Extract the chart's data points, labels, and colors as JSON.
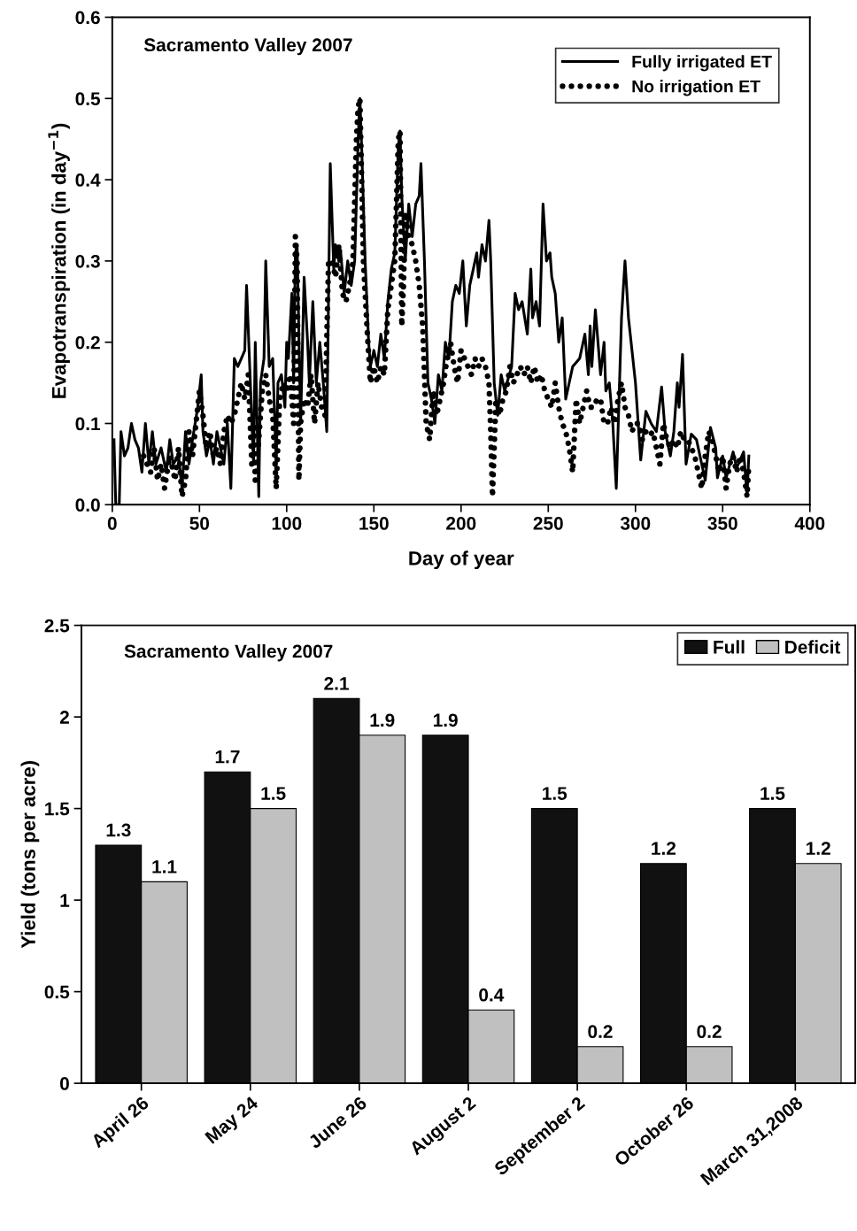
{
  "chart_data": [
    {
      "type": "line",
      "title": "Sacramento Valley 2007",
      "xlabel": "Day of year",
      "ylabel": "Evapotranspiration (in day$^{−1}$)",
      "xlim": [
        0,
        400
      ],
      "xticks": [
        0,
        50,
        100,
        150,
        200,
        250,
        300,
        350,
        400
      ],
      "ylim": [
        0,
        0.6
      ],
      "yticks": [
        {
          "value": 0,
          "label": "0.0"
        },
        {
          "value": 0.1,
          "label": "0.1"
        },
        {
          "value": 0.2,
          "label": "0.2"
        },
        {
          "value": 0.3,
          "label": "0.3"
        },
        {
          "value": 0.4,
          "label": "0.4"
        },
        {
          "value": 0.5,
          "label": "0.5"
        },
        {
          "value": 0.6,
          "label": "0.6"
        }
      ],
      "grid": false,
      "legend": "top right",
      "marker": "none",
      "series": [
        {
          "name": "Fully irrigated ET",
          "color": "#000000",
          "line_style": "solid",
          "x": [
            1,
            2,
            4,
            5,
            7,
            9,
            11,
            13,
            15,
            17,
            19,
            21,
            23,
            25,
            28,
            31,
            33,
            35,
            38,
            40,
            42,
            44,
            46,
            49,
            50,
            51,
            52,
            54,
            56,
            58,
            60,
            62,
            64,
            66,
            68,
            70,
            72,
            74,
            76,
            77,
            79,
            81,
            82,
            84,
            85,
            87,
            88,
            90,
            92,
            94,
            95,
            97,
            99,
            100,
            101,
            103,
            104,
            105,
            106,
            108,
            110,
            112,
            113,
            115,
            117,
            119,
            121,
            123,
            125,
            127,
            128,
            130,
            131,
            133,
            135,
            137,
            139,
            141,
            142,
            143,
            145,
            147,
            148,
            150,
            152,
            154,
            156,
            158,
            160,
            162,
            164,
            165,
            166,
            168,
            170,
            172,
            174,
            176,
            177,
            179,
            181,
            183,
            185,
            187,
            189,
            191,
            193,
            195,
            197,
            199,
            201,
            203,
            205,
            207,
            209,
            210,
            212,
            214,
            216,
            217,
            219,
            221,
            223,
            225,
            229,
            231,
            233,
            235,
            238,
            240,
            241,
            243,
            245,
            247,
            249,
            251,
            252,
            254,
            256,
            258,
            260,
            264,
            268,
            271,
            273,
            274,
            275,
            277,
            280,
            282,
            283,
            285,
            287,
            289,
            292,
            294,
            296,
            300,
            303,
            306,
            309,
            312,
            315,
            317,
            320,
            322,
            324,
            325,
            327,
            329,
            332,
            335,
            337,
            340,
            343,
            346,
            347,
            350,
            352,
            356,
            358,
            362,
            364,
            365
          ],
          "values": [
            0.08,
            0.0,
            0.0,
            0.09,
            0.06,
            0.07,
            0.1,
            0.08,
            0.07,
            0.04,
            0.1,
            0.05,
            0.09,
            0.05,
            0.07,
            0.04,
            0.08,
            0.05,
            0.06,
            0.02,
            0.09,
            0.05,
            0.08,
            0.12,
            0.14,
            0.16,
            0.09,
            0.06,
            0.08,
            0.05,
            0.09,
            0.07,
            0.05,
            0.1,
            0.02,
            0.18,
            0.17,
            0.18,
            0.19,
            0.27,
            0.16,
            0.05,
            0.2,
            0.01,
            0.15,
            0.18,
            0.3,
            0.17,
            0.18,
            0.05,
            0.15,
            0.16,
            0.12,
            0.2,
            0.18,
            0.26,
            0.15,
            0.31,
            0.32,
            0.1,
            0.28,
            0.2,
            0.15,
            0.25,
            0.15,
            0.2,
            0.15,
            0.09,
            0.42,
            0.29,
            0.32,
            0.3,
            0.31,
            0.26,
            0.3,
            0.27,
            0.3,
            0.45,
            0.5,
            0.44,
            0.3,
            0.2,
            0.17,
            0.19,
            0.17,
            0.21,
            0.18,
            0.25,
            0.29,
            0.31,
            0.44,
            0.46,
            0.38,
            0.3,
            0.37,
            0.33,
            0.37,
            0.38,
            0.42,
            0.3,
            0.15,
            0.13,
            0.1,
            0.16,
            0.14,
            0.2,
            0.18,
            0.25,
            0.27,
            0.26,
            0.3,
            0.22,
            0.27,
            0.29,
            0.31,
            0.28,
            0.32,
            0.3,
            0.35,
            0.3,
            0.15,
            0.11,
            0.16,
            0.14,
            0.17,
            0.26,
            0.24,
            0.25,
            0.21,
            0.29,
            0.23,
            0.25,
            0.22,
            0.37,
            0.3,
            0.31,
            0.28,
            0.26,
            0.2,
            0.23,
            0.13,
            0.17,
            0.18,
            0.21,
            0.16,
            0.22,
            0.17,
            0.24,
            0.16,
            0.2,
            0.14,
            0.15,
            0.1,
            0.02,
            0.23,
            0.3,
            0.23,
            0.15,
            0.055,
            0.115,
            0.1,
            0.09,
            0.145,
            0.09,
            0.06,
            0.09,
            0.15,
            0.12,
            0.185,
            0.05,
            0.087,
            0.08,
            0.06,
            0.03,
            0.095,
            0.07,
            0.033,
            0.06,
            0.033,
            0.065,
            0.045,
            0.065,
            0.012,
            0.06
          ]
        },
        {
          "name": "No irrigation ET",
          "color": "#000000",
          "line_style": "dotted",
          "x": [
            18,
            20,
            22,
            24,
            26,
            28,
            30,
            33,
            36,
            38,
            40,
            42,
            44,
            46,
            48,
            50,
            52,
            54,
            56,
            58,
            60,
            62,
            64,
            66,
            68,
            70,
            72,
            74,
            76,
            78,
            80,
            81,
            82,
            84,
            86,
            88,
            90,
            92,
            94,
            96,
            98,
            100,
            102,
            104,
            105,
            106,
            107,
            108,
            110,
            112,
            114,
            116,
            118,
            120,
            122,
            124,
            126,
            128,
            130,
            132,
            134,
            136,
            138,
            140,
            141,
            142,
            143,
            144,
            146,
            148,
            150,
            152,
            154,
            156,
            158,
            160,
            162,
            164,
            165,
            166,
            167,
            168,
            170,
            172,
            174,
            176,
            178,
            180,
            182,
            184,
            186,
            188,
            190,
            192,
            194,
            196,
            198,
            200,
            202,
            204,
            206,
            208,
            210,
            212,
            214,
            216,
            217,
            218,
            220,
            222,
            224,
            226,
            228,
            230,
            232,
            234,
            236,
            238,
            240,
            242,
            244,
            246,
            248,
            250,
            252,
            254,
            256,
            258,
            260,
            262,
            264,
            266,
            268,
            270,
            272,
            274,
            276,
            278,
            280,
            282,
            284,
            286,
            288,
            290,
            292,
            294,
            296,
            298,
            300,
            302,
            304,
            306,
            308,
            310,
            312,
            314,
            316,
            318,
            320,
            322,
            324,
            326,
            328,
            330,
            332,
            334,
            336,
            338,
            340,
            342,
            344,
            346,
            348,
            350,
            352,
            354,
            356,
            358,
            360,
            362,
            364,
            365
          ],
          "values": [
            0.06,
            0.05,
            0.04,
            0.07,
            0.03,
            0.05,
            0.02,
            0.06,
            0.03,
            0.07,
            0.01,
            0.03,
            0.09,
            0.06,
            0.1,
            0.14,
            0.11,
            0.07,
            0.09,
            0.06,
            0.07,
            0.05,
            0.09,
            0.11,
            0.1,
            0.11,
            0.13,
            0.15,
            0.13,
            0.16,
            0.05,
            0.1,
            0.03,
            0.08,
            0.14,
            0.16,
            0.13,
            0.11,
            0.02,
            0.13,
            0.15,
            0.14,
            0.16,
            0.1,
            0.33,
            0.3,
            0.03,
            0.1,
            0.13,
            0.12,
            0.16,
            0.1,
            0.15,
            0.12,
            0.11,
            0.3,
            0.3,
            0.28,
            0.32,
            0.26,
            0.25,
            0.27,
            0.3,
            0.45,
            0.49,
            0.5,
            0.4,
            0.3,
            0.22,
            0.15,
            0.17,
            0.15,
            0.17,
            0.16,
            0.24,
            0.27,
            0.3,
            0.45,
            0.46,
            0.22,
            0.27,
            0.36,
            0.33,
            0.32,
            0.3,
            0.27,
            0.22,
            0.1,
            0.08,
            0.14,
            0.11,
            0.13,
            0.15,
            0.18,
            0.2,
            0.17,
            0.15,
            0.19,
            0.18,
            0.17,
            0.16,
            0.18,
            0.17,
            0.18,
            0.17,
            0.15,
            0.09,
            0.01,
            0.13,
            0.11,
            0.13,
            0.14,
            0.17,
            0.15,
            0.16,
            0.17,
            0.16,
            0.17,
            0.15,
            0.17,
            0.15,
            0.16,
            0.14,
            0.13,
            0.12,
            0.15,
            0.12,
            0.1,
            0.09,
            0.07,
            0.04,
            0.13,
            0.1,
            0.12,
            0.14,
            0.12,
            0.12,
            0.13,
            0.13,
            0.1,
            0.1,
            0.12,
            0.1,
            0.13,
            0.15,
            0.12,
            0.11,
            0.09,
            0.1,
            0.1,
            0.08,
            0.09,
            0.085,
            0.09,
            0.07,
            0.05,
            0.1,
            0.08,
            0.07,
            0.08,
            0.07,
            0.09,
            0.08,
            0.08,
            0.07,
            0.06,
            0.04,
            0.02,
            0.06,
            0.09,
            0.08,
            0.06,
            0.04,
            0.06,
            0.02,
            0.05,
            0.06,
            0.04,
            0.06,
            0.04,
            0.01,
            0.05
          ]
        }
      ]
    },
    {
      "type": "bar",
      "title": "Sacramento Valley 2007",
      "ylabel": "Yield (tons per acre)",
      "categories": [
        "April 26",
        "May 24",
        "June 26",
        "August 2",
        "September 2",
        "October 26",
        "March 31,2008"
      ],
      "ylim": [
        0,
        2.5
      ],
      "yticks": [
        0,
        0.5,
        1,
        1.5,
        2,
        2.5
      ],
      "grid": false,
      "legend": "top right",
      "data_labels": true,
      "series": [
        {
          "name": "Full",
          "color": "#111111",
          "values": [
            1.3,
            1.7,
            2.1,
            1.9,
            1.5,
            1.2,
            1.5
          ]
        },
        {
          "name": "Deficit",
          "color": "#c0c0c0",
          "values": [
            1.1,
            1.5,
            1.9,
            0.4,
            0.2,
            0.2,
            1.2
          ]
        }
      ]
    }
  ]
}
